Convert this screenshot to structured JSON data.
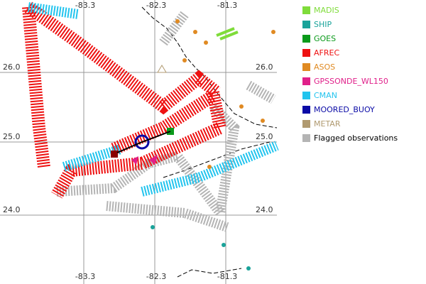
{
  "map": {
    "lon_labels": [
      "-83.3",
      "-82.3",
      "-81.3"
    ],
    "lat_labels": [
      "26.0",
      "25.0",
      "24.0"
    ],
    "legend": [
      {
        "label": "MADIS",
        "color": "#7fdc3a"
      },
      {
        "label": "SHIP",
        "color": "#1aa39a"
      },
      {
        "label": "GOES",
        "color": "#0a9a1a"
      },
      {
        "label": "AFREC",
        "color": "#ee1111"
      },
      {
        "label": "ASOS",
        "color": "#e08a22"
      },
      {
        "label": "GPSSONDE_WL150",
        "color": "#e0208a"
      },
      {
        "label": "CMAN",
        "color": "#22c4ee"
      },
      {
        "label": "MOORED_BUOY",
        "color": "#0a0aa6"
      },
      {
        "label": "METAR",
        "color": "#b09a70"
      },
      {
        "label": "Flagged observations",
        "color": "#b4b4b4"
      }
    ]
  }
}
